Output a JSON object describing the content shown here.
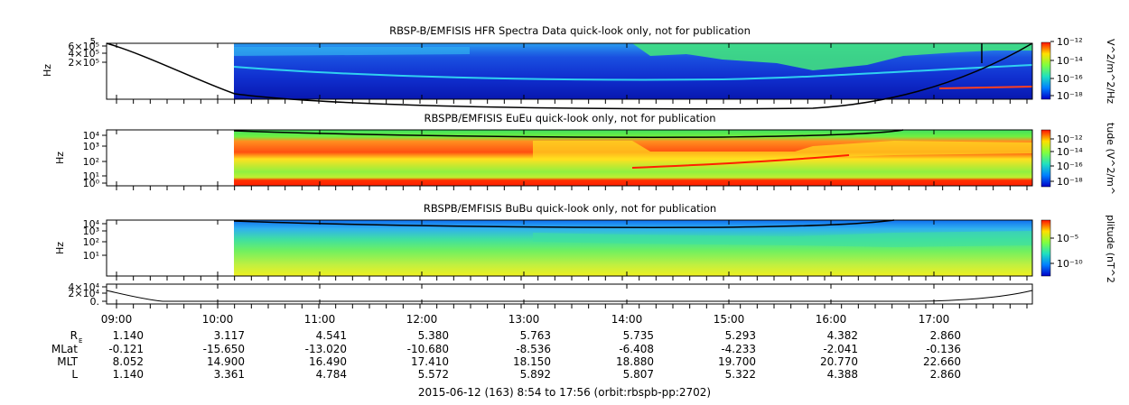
{
  "chart_data": [
    {
      "type": "heatmap",
      "title": "RBSP-B/EMFISIS  HFR Spectra Data quick-look only, not for publication",
      "ylabel": "Hz",
      "y_scale": "log",
      "y_ticks": [
        {
          "value": 600000,
          "label": "6×10⁵"
        },
        {
          "value": 400000,
          "label": "4×10⁵"
        },
        {
          "value": 200000,
          "label": "2×10⁵"
        }
      ],
      "y_top_label": "5",
      "colorbar": {
        "label": "V^2/m^2/Hz",
        "ticks": [
          "10⁻¹²",
          "10⁻¹⁴",
          "10⁻¹⁶",
          "10⁻¹⁸"
        ]
      }
    },
    {
      "type": "heatmap",
      "title": "RBSPB/EMFISIS  EuEu quick-look only, not for publication",
      "ylabel": "Hz",
      "y_scale": "log",
      "y_ticks": [
        {
          "value": 10000,
          "label": "10⁴"
        },
        {
          "value": 1000,
          "label": "10³"
        },
        {
          "value": 100,
          "label": "10²"
        },
        {
          "value": 10,
          "label": "10¹"
        },
        {
          "value": 1,
          "label": "10⁰"
        }
      ],
      "colorbar": {
        "label": "tude (V^2/m^",
        "ticks": [
          "10⁻¹²",
          "10⁻¹⁴",
          "10⁻¹⁶",
          "10⁻¹⁸"
        ]
      }
    },
    {
      "type": "heatmap",
      "title": "RBSPB/EMFISIS  BuBu quick-look only, not for publication",
      "ylabel": "Hz",
      "y_scale": "log",
      "y_ticks": [
        {
          "value": 10000,
          "label": "10⁴"
        },
        {
          "value": 1000,
          "label": "10³"
        },
        {
          "value": 100,
          "label": "10²"
        },
        {
          "value": 10,
          "label": "10¹"
        }
      ],
      "colorbar": {
        "label": "plitude (nT^2",
        "ticks": [
          "10⁻⁵",
          "10⁻¹⁰"
        ]
      }
    },
    {
      "type": "line",
      "y_ticks": [
        {
          "value": 40000,
          "label": "4×10⁴"
        },
        {
          "value": 20000,
          "label": "2×10⁴"
        },
        {
          "value": 0,
          "label": "0."
        }
      ]
    }
  ],
  "x_axis": {
    "tick_labels": [
      "09:00",
      "10:00",
      "11:00",
      "12:00",
      "13:00",
      "14:00",
      "15:00",
      "16:00",
      "17:00"
    ],
    "ephemeris": [
      {
        "name": "R",
        "values": [
          "1.140",
          "3.117",
          "4.541",
          "5.380",
          "5.763",
          "5.735",
          "5.293",
          "4.382",
          "2.860"
        ]
      },
      {
        "name": "MLat",
        "values": [
          "-0.121",
          "-15.650",
          "-13.020",
          "-10.680",
          "-8.536",
          "-6.408",
          "-4.233",
          "-2.041",
          "-0.136"
        ]
      },
      {
        "name": "MLT",
        "values": [
          "8.052",
          "14.900",
          "16.490",
          "17.410",
          "18.150",
          "18.880",
          "19.700",
          "20.770",
          "22.660"
        ]
      },
      {
        "name": "L",
        "values": [
          "1.140",
          "3.361",
          "4.784",
          "5.572",
          "5.892",
          "5.807",
          "5.322",
          "4.388",
          "2.860"
        ]
      }
    ]
  },
  "footer": "2015-06-12 (163) 8:54 to 17:56 (orbit:rbspb-pp:2702)"
}
